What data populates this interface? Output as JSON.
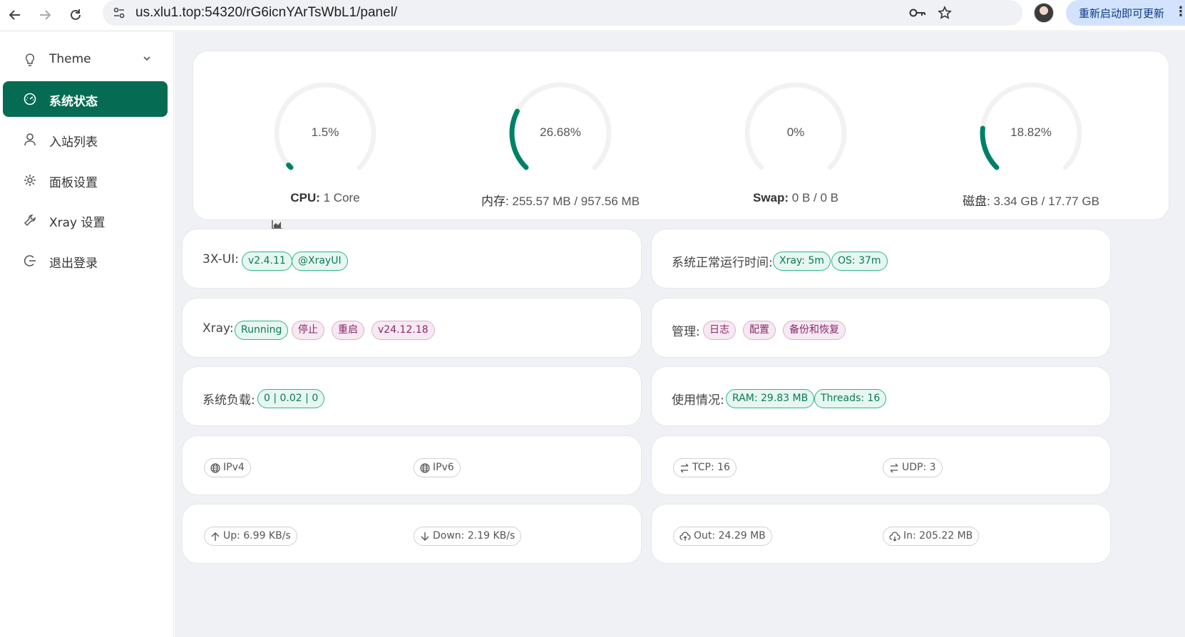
{
  "browser": {
    "url": "us.xlu1.top:54320/rG6icnYArTsWbL1/panel/",
    "update_label": "重新启动即可更新"
  },
  "sidebar": {
    "items": [
      {
        "label": "Theme",
        "icon": "bulb-icon"
      },
      {
        "label": "系统状态",
        "icon": "dashboard-icon",
        "active": true
      },
      {
        "label": "入站列表",
        "icon": "user-icon"
      },
      {
        "label": "面板设置",
        "icon": "gear-icon"
      },
      {
        "label": "Xray 设置",
        "icon": "wrench-icon"
      },
      {
        "label": "退出登录",
        "icon": "logout-icon"
      }
    ]
  },
  "gauges": [
    {
      "percent": 1.5,
      "percent_label": "1.5%",
      "caption_key": "CPU:",
      "caption_value": "1 Core",
      "icon": "chart-icon"
    },
    {
      "percent": 26.68,
      "percent_label": "26.68%",
      "caption_key": "内存:",
      "caption_value": "255.57 MB / 957.56 MB"
    },
    {
      "percent": 0,
      "percent_label": "0%",
      "caption_key": "Swap:",
      "caption_value": "0 B / 0 B"
    },
    {
      "percent": 18.82,
      "percent_label": "18.82%",
      "caption_key": "磁盘:",
      "caption_value": "3.34 GB / 17.77 GB"
    }
  ],
  "version": {
    "label": "3X-UI:",
    "tags": [
      "v2.4.11",
      "@XrayUI"
    ]
  },
  "uptime": {
    "label": "系统正常运行时间:",
    "tags": [
      "Xray: 5m",
      "OS: 37m"
    ]
  },
  "xray": {
    "label": "Xray:",
    "status": "Running",
    "stop": "停止",
    "restart": "重启",
    "version": "v24.12.18"
  },
  "manage": {
    "label": "管理:",
    "tags": [
      "日志",
      "配置",
      "备份和恢复"
    ]
  },
  "load": {
    "label": "系统负载:",
    "value": "0 | 0.02 | 0"
  },
  "usage": {
    "label": "使用情况:",
    "tags": [
      "RAM: 29.83 MB",
      "Threads: 16"
    ]
  },
  "ip": {
    "ipv4": "IPv4",
    "ipv6": "IPv6"
  },
  "conn": {
    "tcp": "TCP: 16",
    "udp": "UDP: 3"
  },
  "speed": {
    "up": "Up: 6.99 KB/s",
    "down": "Down: 2.19 KB/s"
  },
  "traffic": {
    "out": "Out: 24.29 MB",
    "in": "In: 205.22 MB"
  },
  "colors": {
    "accent": "#056b52",
    "gauge": "#008069",
    "track": "#f2f2f2"
  }
}
